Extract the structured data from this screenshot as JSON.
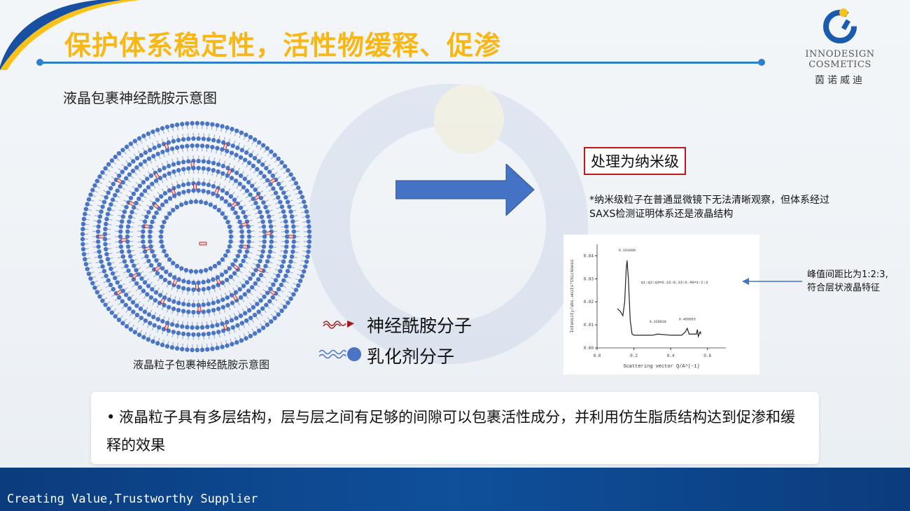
{
  "header": {
    "title": "保护体系稳定性，活性物缓释、促渗"
  },
  "logo": {
    "name_en": "INNODESIGN COSMETICS",
    "name_cn": "茵诺威迪"
  },
  "diagram": {
    "subtitle": "液晶包裹神经酰胺示意图",
    "caption": "液晶粒子包裹神经酰胺示意图",
    "legend": [
      {
        "icon": "ceramide-molecule-icon",
        "label": "神经酰胺分子"
      },
      {
        "icon": "emulsifier-molecule-icon",
        "label": "乳化剂分子"
      }
    ]
  },
  "process": {
    "highlight": "处理为纳米级",
    "note": "*纳米级粒子在普通显微镜下无法清晰观察，但体系经过SAXS检测证明体系还是液晶结构",
    "peak_note_line1": "峰值间距比为1:2:3,",
    "peak_note_line2": "符合层状液晶特征"
  },
  "chart_data": {
    "type": "line",
    "xlabel": "Scattering vector Q/A^(-1)",
    "ylabel": "Intensity/abs.units*thickness",
    "xlim": [
      0.0,
      0.7
    ],
    "ylim": [
      0.0,
      0.045
    ],
    "xticks": [
      "0.0",
      "0.2",
      "0.4",
      "0.6"
    ],
    "yticks": [
      "0.00",
      "0.01",
      "0.02",
      "0.03",
      "0.04"
    ],
    "x": [
      0.11,
      0.125,
      0.14,
      0.15,
      0.158,
      0.163,
      0.17,
      0.18,
      0.19,
      0.2,
      0.3,
      0.33,
      0.4,
      0.46,
      0.48,
      0.49,
      0.5,
      0.54,
      0.545,
      0.55,
      0.56,
      0.565
    ],
    "y": [
      0.017,
      0.016,
      0.014,
      0.02,
      0.034,
      0.038,
      0.03,
      0.012,
      0.006,
      0.0055,
      0.0055,
      0.006,
      0.0055,
      0.0055,
      0.007,
      0.0085,
      0.006,
      0.006,
      0.008,
      0.005,
      0.007,
      0.006
    ],
    "annotations": [
      {
        "text": "0.161600",
        "x": 0.163,
        "y": 0.042
      },
      {
        "text": "0.328818",
        "x": 0.33,
        "y": 0.011
      },
      {
        "text": "0.489563",
        "x": 0.49,
        "y": 0.012
      },
      {
        "text": "q1:q2:q3=0.16:0.33:0.49=1:2:3",
        "x": 0.42,
        "y": 0.028
      }
    ],
    "line_color": "#222222"
  },
  "bullet": {
    "text": "液晶粒子具有多层结构，层与层之间有足够的间隙可以包裹活性成分，并利用仿生脂质结构达到促渗和缓释的效果"
  },
  "footer": {
    "slogan": "Creating Value,Trustworthy Supplier"
  },
  "colors": {
    "title": "#f8b715",
    "accent_blue": "#2f7fc8",
    "footer": "#0b3c7d",
    "head": "#4a74c4",
    "ceramide": "#a01818"
  }
}
